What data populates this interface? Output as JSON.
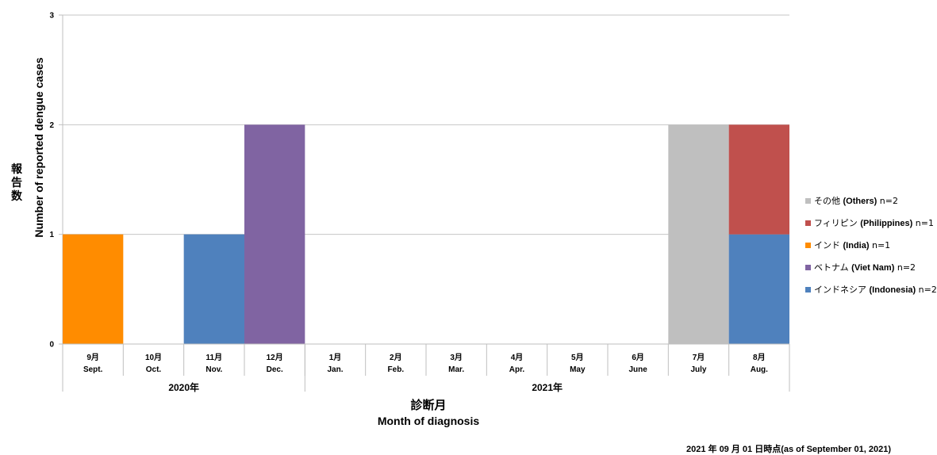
{
  "chart_data": {
    "type": "bar",
    "stacked": true,
    "categories": [
      {
        "jp": "9月",
        "en": "Sept."
      },
      {
        "jp": "10月",
        "en": "Oct."
      },
      {
        "jp": "11月",
        "en": "Nov."
      },
      {
        "jp": "12月",
        "en": "Dec."
      },
      {
        "jp": "1月",
        "en": "Jan."
      },
      {
        "jp": "2月",
        "en": "Feb."
      },
      {
        "jp": "3月",
        "en": "Mar."
      },
      {
        "jp": "4月",
        "en": "Apr."
      },
      {
        "jp": "5月",
        "en": "May"
      },
      {
        "jp": "6月",
        "en": "June"
      },
      {
        "jp": "7月",
        "en": "July"
      },
      {
        "jp": "8月",
        "en": "Aug."
      }
    ],
    "years": [
      {
        "label": "2020年",
        "from": 0,
        "to": 3
      },
      {
        "label": "2021年",
        "from": 4,
        "to": 11
      }
    ],
    "series": [
      {
        "name_jp": "インドネシア",
        "name_en": "(Indonesia)",
        "n": "n=2",
        "color": "#4f81bd",
        "values": [
          0,
          0,
          1,
          0,
          0,
          0,
          0,
          0,
          0,
          0,
          0,
          1
        ]
      },
      {
        "name_jp": "ベトナム",
        "name_en": "(Viet Nam)",
        "n": "n=2",
        "color": "#8064a2",
        "values": [
          0,
          0,
          0,
          2,
          0,
          0,
          0,
          0,
          0,
          0,
          0,
          0
        ]
      },
      {
        "name_jp": "インド",
        "name_en": "(India)",
        "n": "n=1",
        "color": "#ff8c00",
        "values": [
          1,
          0,
          0,
          0,
          0,
          0,
          0,
          0,
          0,
          0,
          0,
          0
        ]
      },
      {
        "name_jp": "フィリピン",
        "name_en": "(Philippines)",
        "n": "n=1",
        "color": "#c0504d",
        "values": [
          0,
          0,
          0,
          0,
          0,
          0,
          0,
          0,
          0,
          0,
          0,
          1
        ]
      },
      {
        "name_jp": "その他",
        "name_en": "(Others)",
        "n": "n=2",
        "color": "#bfbfbf",
        "values": [
          0,
          0,
          0,
          0,
          0,
          0,
          0,
          0,
          0,
          0,
          2,
          0
        ]
      }
    ],
    "ylim": [
      0,
      3
    ],
    "yticks": [
      "0",
      "1",
      "2",
      "3"
    ],
    "grid": true,
    "legend_position": "right",
    "xlabel_jp": "診断月",
    "xlabel_en": "Month of diagnosis",
    "ylabel_jp": "報告数",
    "ylabel_en": "Number of reported dengue cases"
  },
  "timestamp": "2021 年 09 月 01 日時点(as of September 01, 2021)"
}
